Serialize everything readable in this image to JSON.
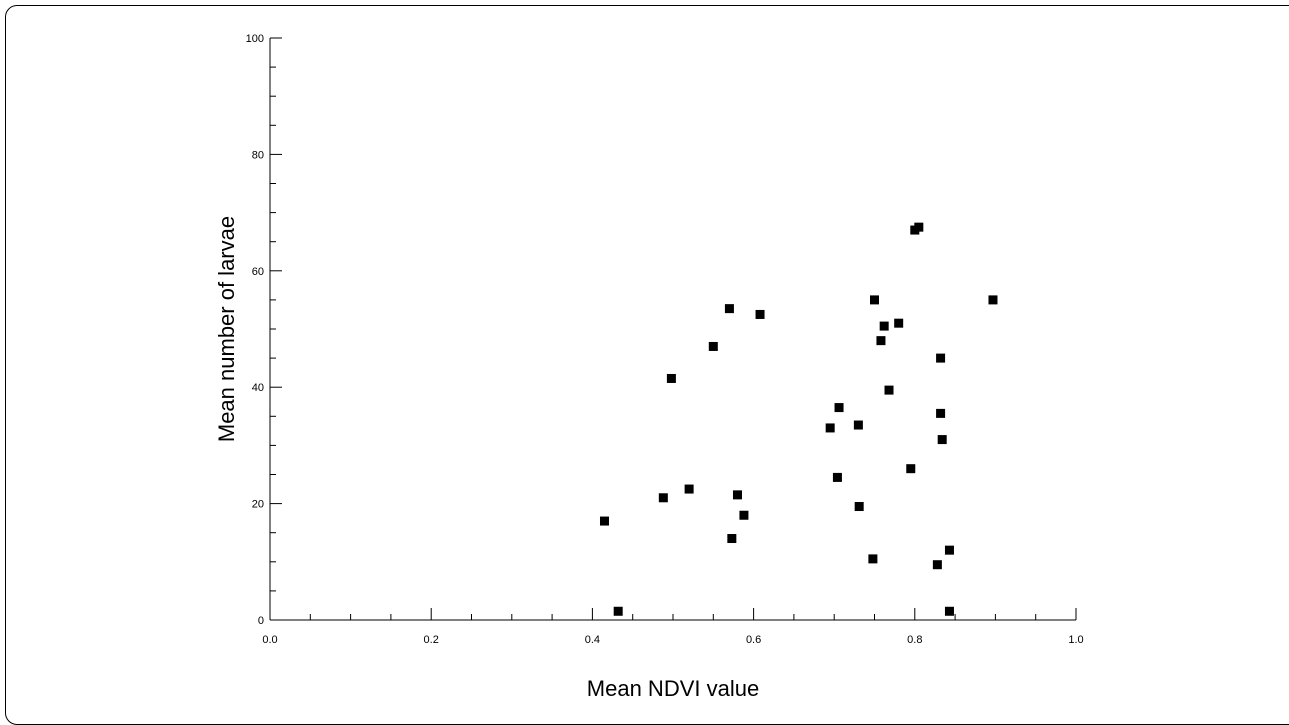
{
  "chart_data": {
    "type": "scatter",
    "xlabel": "Mean NDVI value",
    "ylabel": "Mean number of larvae",
    "xlim": [
      0.0,
      1.0
    ],
    "ylim": [
      0,
      100
    ],
    "x_ticks": [
      "0.0",
      "0.2",
      "0.4",
      "0.6",
      "0.8",
      "1.0"
    ],
    "y_ticks": [
      "0",
      "20",
      "40",
      "60",
      "80",
      "100"
    ],
    "grid": false,
    "marker": "square",
    "marker_color": "#000000",
    "points": [
      {
        "x": 0.415,
        "y": 17
      },
      {
        "x": 0.432,
        "y": 1.5
      },
      {
        "x": 0.488,
        "y": 21
      },
      {
        "x": 0.498,
        "y": 41.5
      },
      {
        "x": 0.52,
        "y": 22.5
      },
      {
        "x": 0.55,
        "y": 47
      },
      {
        "x": 0.57,
        "y": 53.5
      },
      {
        "x": 0.573,
        "y": 14
      },
      {
        "x": 0.58,
        "y": 21.5
      },
      {
        "x": 0.588,
        "y": 18
      },
      {
        "x": 0.608,
        "y": 52.5
      },
      {
        "x": 0.695,
        "y": 33
      },
      {
        "x": 0.704,
        "y": 24.5
      },
      {
        "x": 0.706,
        "y": 36.5
      },
      {
        "x": 0.73,
        "y": 33.5
      },
      {
        "x": 0.731,
        "y": 19.5
      },
      {
        "x": 0.748,
        "y": 10.5
      },
      {
        "x": 0.75,
        "y": 55
      },
      {
        "x": 0.758,
        "y": 48
      },
      {
        "x": 0.762,
        "y": 50.5
      },
      {
        "x": 0.768,
        "y": 39.5
      },
      {
        "x": 0.78,
        "y": 51
      },
      {
        "x": 0.795,
        "y": 26
      },
      {
        "x": 0.8,
        "y": 67
      },
      {
        "x": 0.805,
        "y": 67.5
      },
      {
        "x": 0.828,
        "y": 9.5
      },
      {
        "x": 0.832,
        "y": 45
      },
      {
        "x": 0.832,
        "y": 35.5
      },
      {
        "x": 0.834,
        "y": 31
      },
      {
        "x": 0.843,
        "y": 12
      },
      {
        "x": 0.843,
        "y": 1.5
      },
      {
        "x": 0.897,
        "y": 55
      }
    ]
  }
}
